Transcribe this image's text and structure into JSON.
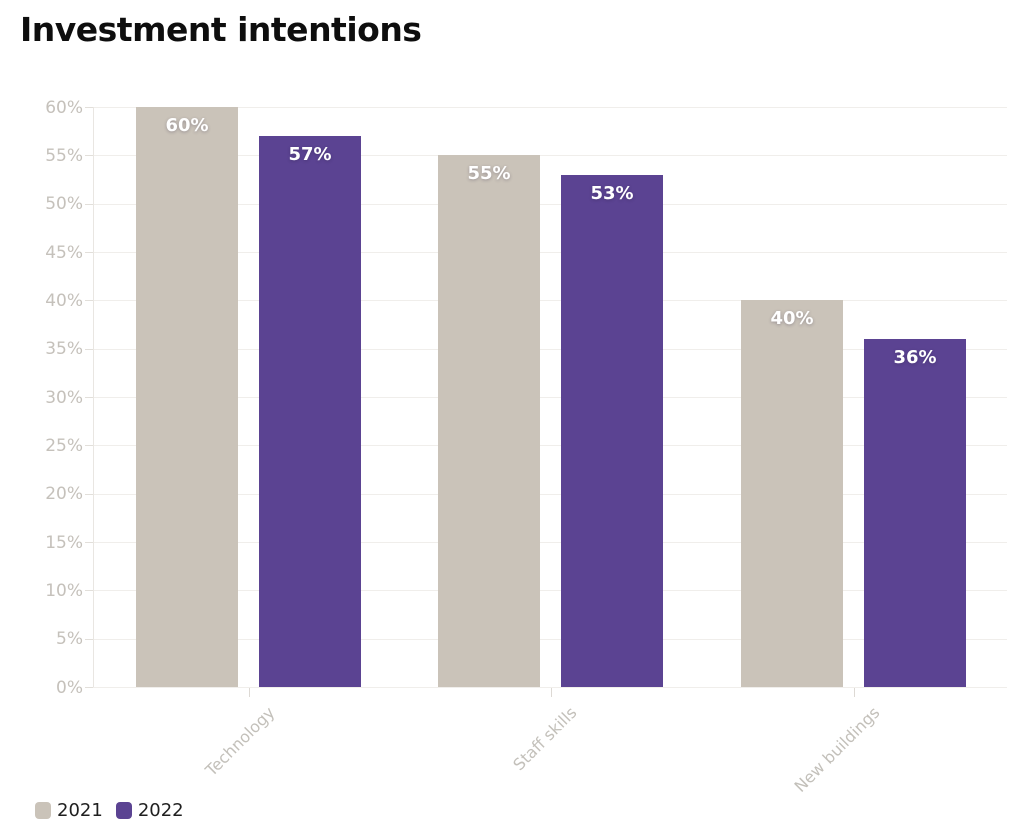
{
  "header": {
    "title": "Investment intentions"
  },
  "chart_data": {
    "type": "bar",
    "title": "Investment intentions",
    "categories": [
      "Technology",
      "Staff skills",
      "New buildings"
    ],
    "series": [
      {
        "name": "2021",
        "color": "#cac3b9",
        "values": [
          60,
          55,
          40
        ],
        "value_labels": [
          "60%",
          "55%",
          "40%"
        ]
      },
      {
        "name": "2022",
        "color": "#5b4392",
        "values": [
          57,
          53,
          36
        ],
        "value_labels": [
          "57%",
          "53%",
          "36%"
        ]
      }
    ],
    "value_suffix": "%",
    "ylim": [
      0,
      60
    ],
    "ytick_step": 5,
    "ytick_labels": [
      "0%",
      "5%",
      "10%",
      "15%",
      "20%",
      "25%",
      "30%",
      "35%",
      "40%",
      "45%",
      "50%",
      "55%",
      "60%"
    ],
    "grid": true,
    "grid_color": "#f0eeeb",
    "axis_label_color": "#c5c1bb",
    "bar_label_color": "#ffffff",
    "legend_position": "bottom-left",
    "xlabel": "",
    "ylabel": ""
  }
}
